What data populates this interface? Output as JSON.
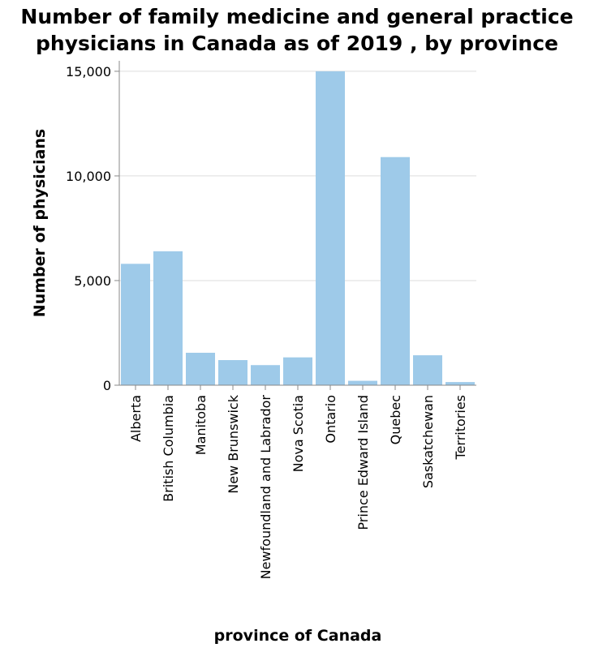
{
  "chart_data": {
    "type": "bar",
    "title_lines": [
      "Number of family medicine and general practice",
      "physicians in Canada as of 2019 , by province"
    ],
    "xlabel": "province of Canada",
    "ylabel": "Number of physicians",
    "categories": [
      "Alberta",
      "British Columbia",
      "Manitoba",
      "New Brunswick",
      "Newfoundland and Labrador",
      "Nova Scotia",
      "Ontario",
      "Prince Edward Island",
      "Quebec",
      "Saskatchewan",
      "Territories"
    ],
    "values": [
      5800,
      6400,
      1550,
      1200,
      960,
      1330,
      15000,
      210,
      10900,
      1430,
      150
    ],
    "ylim": [
      0,
      15500
    ],
    "yticks": [
      0,
      5000,
      10000,
      15000
    ],
    "ytick_labels": [
      "0",
      "5,000",
      "10,000",
      "15,000"
    ],
    "grid": true,
    "bar_color": "#9ecae9",
    "grid_color": "#dddddd",
    "axis_color": "#888888"
  }
}
